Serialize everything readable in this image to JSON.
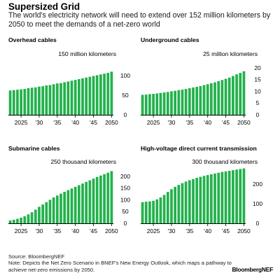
{
  "header": {
    "title": "Supersized Grid",
    "subtitle": "The world's electricity network will need to extend over 152 million kilometers by 2050 to meet the demands of a net-zero world"
  },
  "footer": {
    "source": "Source: BloombergNEF",
    "note": "Note: Depicts the Net Zero Scenario in BNEF's New Energy Outlook, which maps a pathway to achieve net-zero emissions by 2050.",
    "brand": "BloombergNEF"
  },
  "colors": {
    "bar": "#22b14c",
    "axis": "#000000"
  },
  "chart_data": [
    {
      "type": "bar",
      "title": "Overhead cables",
      "unit_label": "150 million kilometers",
      "x": [
        2022,
        2023,
        2024,
        2025,
        2026,
        2027,
        2028,
        2029,
        2030,
        2031,
        2032,
        2033,
        2034,
        2035,
        2036,
        2037,
        2038,
        2039,
        2040,
        2041,
        2042,
        2043,
        2044,
        2045,
        2046,
        2047,
        2048,
        2049,
        2050
      ],
      "values": [
        62,
        63,
        64,
        65,
        66,
        68,
        69,
        70,
        72,
        73,
        75,
        76,
        78,
        80,
        81,
        83,
        85,
        87,
        89,
        91,
        93,
        95,
        97,
        99,
        101,
        103,
        105,
        107,
        110
      ],
      "yticks": [
        0,
        50,
        100
      ],
      "ylim": [
        0,
        150
      ],
      "xticks": [
        2025,
        2030,
        2035,
        2040,
        2045,
        2050
      ],
      "xtick_labels": [
        "2025",
        "'30",
        "'35",
        "'40",
        "'45",
        "2050"
      ]
    },
    {
      "type": "bar",
      "title": "Underground cables",
      "unit_label": "25 million kilometers",
      "x": [
        2022,
        2023,
        2024,
        2025,
        2026,
        2027,
        2028,
        2029,
        2030,
        2031,
        2032,
        2033,
        2034,
        2035,
        2036,
        2037,
        2038,
        2039,
        2040,
        2041,
        2042,
        2043,
        2044,
        2045,
        2046,
        2047,
        2048,
        2049,
        2050
      ],
      "values": [
        8.5,
        8.6,
        8.8,
        8.9,
        9.1,
        9.3,
        9.5,
        9.7,
        10,
        10.2,
        10.5,
        10.7,
        11,
        11.3,
        11.6,
        11.9,
        12.2,
        12.6,
        13,
        13.4,
        13.8,
        14.3,
        14.8,
        15.3,
        15.8,
        16.5,
        17.2,
        17.8,
        18.5
      ],
      "yticks": [
        0,
        5,
        10,
        15,
        20
      ],
      "ylim": [
        0,
        25
      ],
      "xticks": [
        2025,
        2030,
        2035,
        2040,
        2045,
        2050
      ],
      "xtick_labels": [
        "2025",
        "'30",
        "'35",
        "'40",
        "'45",
        "2050"
      ]
    },
    {
      "type": "bar",
      "title": "Submarine cables",
      "unit_label": "250 thousand kilometers",
      "x": [
        2022,
        2023,
        2024,
        2025,
        2026,
        2027,
        2028,
        2029,
        2030,
        2031,
        2032,
        2033,
        2034,
        2035,
        2036,
        2037,
        2038,
        2039,
        2040,
        2041,
        2042,
        2043,
        2044,
        2045,
        2046,
        2047,
        2048,
        2049,
        2050
      ],
      "values": [
        12,
        15,
        19,
        24,
        30,
        38,
        47,
        58,
        70,
        80,
        90,
        100,
        110,
        118,
        126,
        134,
        141,
        148,
        155,
        162,
        169,
        176,
        183,
        190,
        197,
        203,
        209,
        215,
        222
      ],
      "yticks": [
        0,
        50,
        100,
        150,
        200
      ],
      "ylim": [
        0,
        250
      ],
      "xticks": [
        2025,
        2030,
        2035,
        2040,
        2045,
        2050
      ],
      "xtick_labels": [
        "2025",
        "'30",
        "'35",
        "'40",
        "'45",
        "2050"
      ]
    },
    {
      "type": "bar",
      "title": "High-voltage direct current transmission",
      "unit_label": "300 thousand kilometers",
      "x": [
        2022,
        2023,
        2024,
        2025,
        2026,
        2027,
        2028,
        2029,
        2030,
        2031,
        2032,
        2033,
        2034,
        2035,
        2036,
        2037,
        2038,
        2039,
        2040,
        2041,
        2042,
        2043,
        2044,
        2045,
        2046,
        2047,
        2048,
        2049,
        2050
      ],
      "values": [
        108,
        110,
        112,
        115,
        122,
        132,
        145,
        160,
        174,
        186,
        196,
        205,
        213,
        220,
        226,
        232,
        237,
        242,
        246,
        250,
        254,
        258,
        262,
        265,
        268,
        271,
        274,
        277,
        280
      ],
      "yticks": [
        0,
        100,
        200
      ],
      "ylim": [
        0,
        300
      ],
      "xticks": [
        2025,
        2030,
        2035,
        2040,
        2045,
        2050
      ],
      "xtick_labels": [
        "2025",
        "'30",
        "'35",
        "'40",
        "'45",
        "2050"
      ]
    }
  ]
}
